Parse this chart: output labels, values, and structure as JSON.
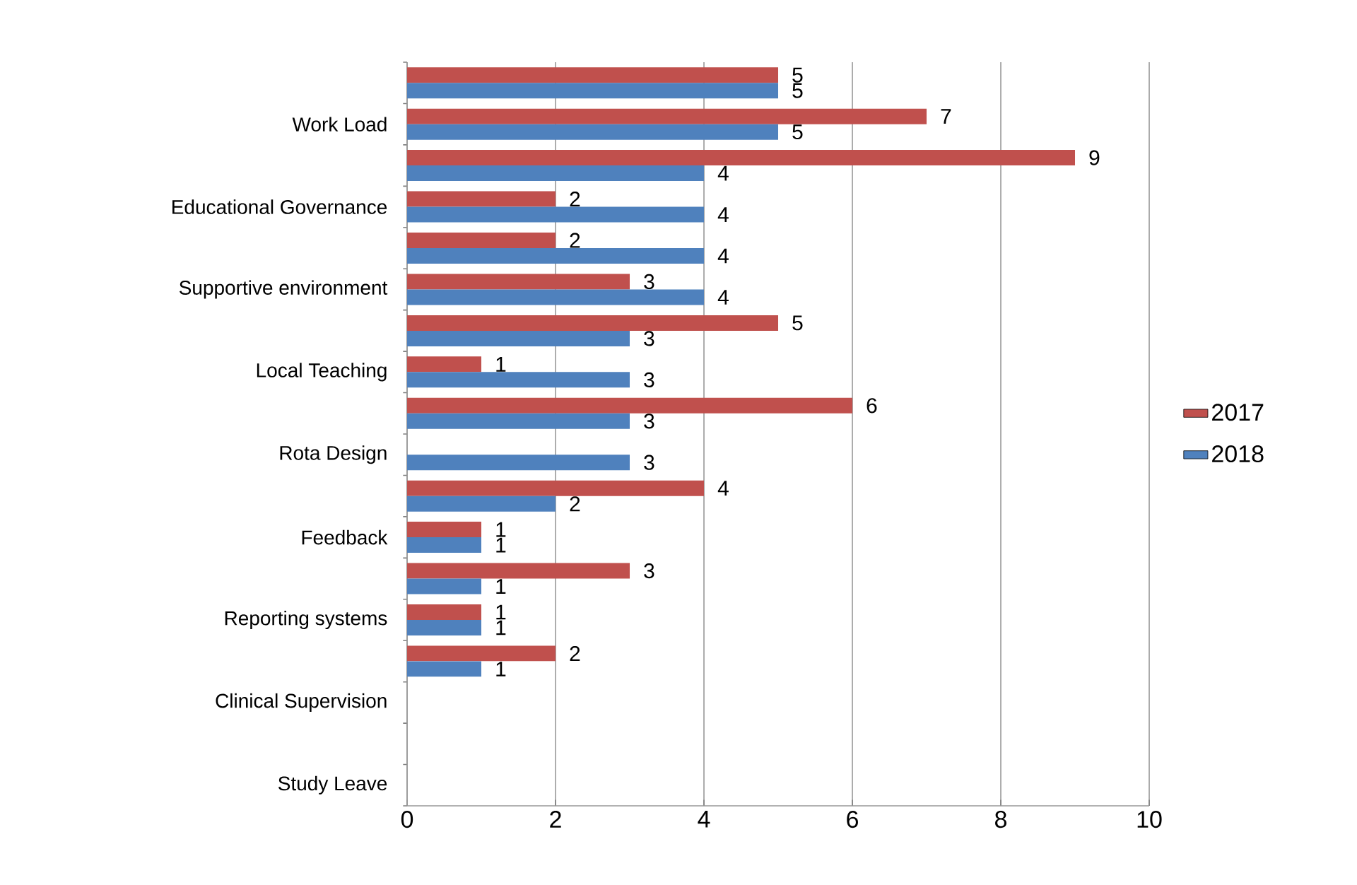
{
  "chart_data": {
    "type": "bar",
    "orientation": "horizontal",
    "categories": [
      null,
      "Work Load",
      null,
      "Educational Governance",
      null,
      "Supportive environment",
      null,
      "Local Teaching",
      null,
      "Rota Design",
      null,
      "Feedback",
      null,
      "Reporting systems",
      null,
      "Clinical Supervision",
      null,
      "Study Leave"
    ],
    "series": [
      {
        "name": "2017",
        "color": "#c0504d",
        "values": [
          5,
          7,
          9,
          2,
          2,
          3,
          5,
          1,
          6,
          null,
          4,
          1,
          3,
          1,
          2,
          null,
          null,
          null
        ]
      },
      {
        "name": "2018",
        "color": "#4f81bd",
        "values": [
          5,
          5,
          4,
          4,
          4,
          4,
          3,
          3,
          3,
          3,
          2,
          1,
          1,
          1,
          1,
          null,
          null,
          null
        ]
      }
    ],
    "xlim": [
      0,
      10
    ],
    "xticks": [
      0,
      2,
      4,
      6,
      8,
      10
    ],
    "grid": "x",
    "legend": "right",
    "data_labels": true
  }
}
